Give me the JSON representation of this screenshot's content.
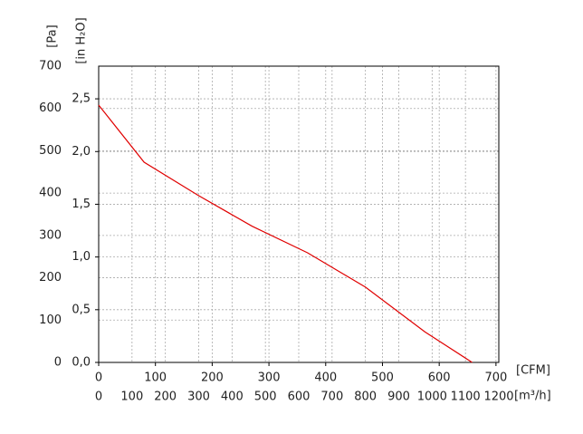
{
  "chart_data": {
    "type": "line",
    "ylabel": "[Pa]",
    "y2label": "[in H₂O]",
    "xlabel": "[CFM]",
    "x2label": "[m³/h]",
    "x": [
      0,
      80,
      175,
      270,
      368,
      470,
      575,
      658
    ],
    "series": [
      {
        "color": "#e00000",
        "values": [
          608,
          473,
          395,
          322,
          259,
          178,
          72,
          0
        ]
      }
    ],
    "xlim": [
      0,
      705
    ],
    "xticks": [
      0,
      100,
      200,
      300,
      400,
      500,
      600,
      700
    ],
    "x2lim": [
      0,
      1200
    ],
    "x2ticks": [
      0,
      100,
      200,
      300,
      400,
      500,
      600,
      700,
      800,
      900,
      1000,
      1100,
      1200
    ],
    "ylim": [
      0,
      700
    ],
    "yticks": [
      0,
      100,
      200,
      300,
      400,
      500,
      600,
      700
    ],
    "y2lim": [
      0,
      2.81
    ],
    "y2ticks": [
      {
        "value": 0,
        "label": "0,0"
      },
      {
        "value": 0.5,
        "label": "0,5"
      },
      {
        "value": 1,
        "label": "1,0"
      },
      {
        "value": 1.5,
        "label": "1,5"
      },
      {
        "value": 2,
        "label": "2,0"
      },
      {
        "value": 2.5,
        "label": "2,5"
      }
    ],
    "grid": true
  }
}
